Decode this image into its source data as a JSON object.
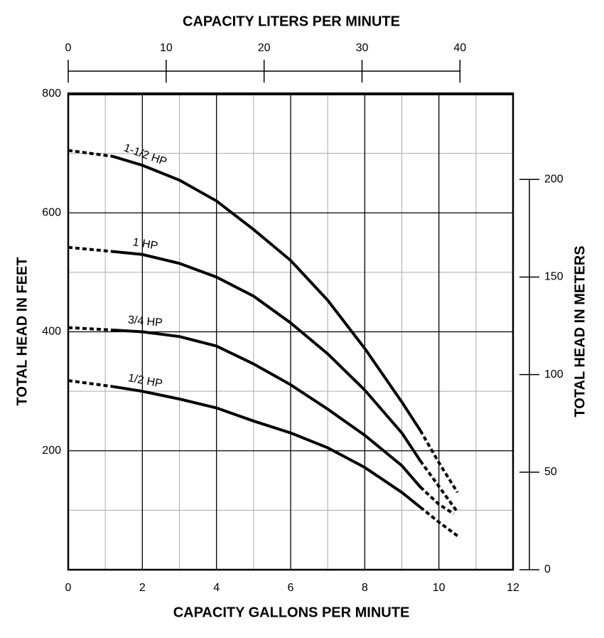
{
  "chart_data": {
    "type": "line",
    "x_label": "CAPACITY GALLONS PER MINUTE",
    "x2_label": "CAPACITY LITERS PER MINUTE",
    "y_label": "TOTAL HEAD IN FEET",
    "y2_label": "TOTAL HEAD IN METERS",
    "xlim": [
      0,
      12
    ],
    "xticks": [
      0,
      2,
      4,
      6,
      8,
      10,
      12
    ],
    "x_minor_ticks": [
      1,
      3,
      5,
      7,
      9,
      11
    ],
    "x2lim": [
      0,
      45.42
    ],
    "x2ticks": [
      0,
      10,
      20,
      30,
      40
    ],
    "ylim": [
      0,
      800
    ],
    "yticks": [
      200,
      400,
      600,
      800
    ],
    "y_minor_ticks": [
      100,
      300,
      500,
      700
    ],
    "y2lim": [
      0,
      243.84
    ],
    "y2ticks": [
      0,
      50,
      100,
      150,
      200
    ],
    "grid": true,
    "color": "#000000",
    "series": [
      {
        "name": "1-1/2 HP",
        "color": "#000000",
        "x": [
          0,
          1.2,
          2,
          3,
          4,
          5,
          6,
          7,
          8,
          9,
          9.5,
          10,
          10.5
        ],
        "values": [
          705,
          695,
          680,
          655,
          620,
          572,
          520,
          453,
          372,
          282,
          234,
          180,
          130
        ],
        "styles": [
          "dashed",
          "solid",
          "solid",
          "solid",
          "solid",
          "solid",
          "solid",
          "solid",
          "solid",
          "solid",
          "dashed",
          "dashed",
          "dashed"
        ]
      },
      {
        "name": "1 HP",
        "color": "#000000",
        "x": [
          0,
          1.2,
          2,
          3,
          4,
          5,
          6,
          7,
          8,
          9,
          9.5,
          10,
          10.5
        ],
        "values": [
          542,
          535,
          530,
          515,
          492,
          460,
          415,
          363,
          302,
          230,
          183,
          140,
          97
        ],
        "styles": [
          "dashed",
          "solid",
          "solid",
          "solid",
          "solid",
          "solid",
          "solid",
          "solid",
          "solid",
          "solid",
          "dashed",
          "dashed",
          "dashed"
        ]
      },
      {
        "name": "3/4 HP",
        "color": "#000000",
        "x": [
          0,
          1.2,
          2,
          3,
          4,
          5,
          6,
          7,
          8,
          9,
          9.5,
          10,
          10.4
        ],
        "values": [
          407,
          403,
          400,
          392,
          376,
          346,
          311,
          270,
          226,
          175,
          139,
          110,
          94
        ],
        "styles": [
          "dashed",
          "solid",
          "solid",
          "solid",
          "solid",
          "solid",
          "solid",
          "solid",
          "solid",
          "solid",
          "dashed",
          "dashed",
          "dashed"
        ]
      },
      {
        "name": "1/2 HP",
        "color": "#000000",
        "x": [
          0,
          1.2,
          2,
          3,
          4,
          5,
          6,
          7,
          8,
          9,
          9.5,
          10,
          10.5
        ],
        "values": [
          318,
          308,
          300,
          287,
          272,
          250,
          230,
          205,
          172,
          130,
          105,
          80,
          57
        ],
        "styles": [
          "dashed",
          "solid",
          "solid",
          "solid",
          "solid",
          "solid",
          "solid",
          "solid",
          "solid",
          "solid",
          "dashed",
          "dashed",
          "dashed"
        ]
      }
    ]
  }
}
